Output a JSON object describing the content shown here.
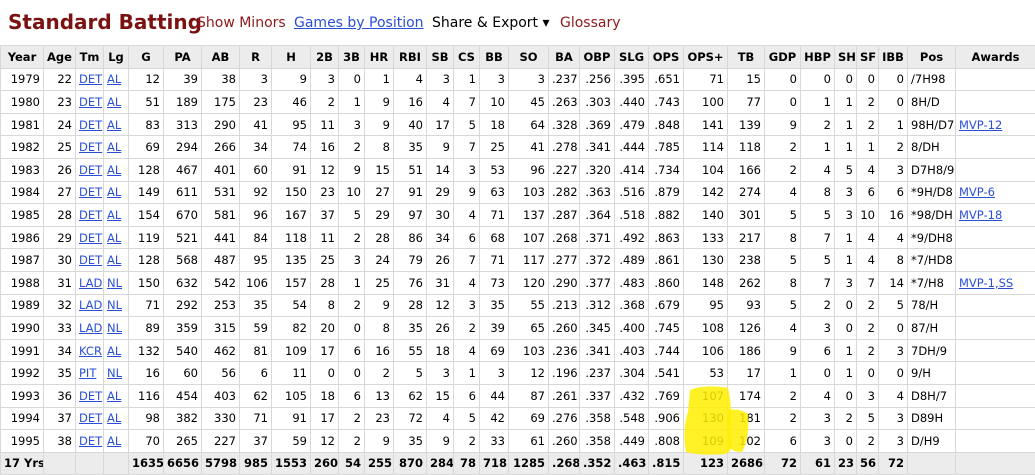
{
  "header": {
    "title": "Standard Batting",
    "show_minors": "Show Minors",
    "games_by_position": "Games by Position",
    "share_export": "Share & Export ▾",
    "glossary": "Glossary"
  },
  "table": {
    "columns": [
      "Year",
      "Age",
      "Tm",
      "Lg",
      "G",
      "PA",
      "AB",
      "R",
      "H",
      "2B",
      "3B",
      "HR",
      "RBI",
      "SB",
      "CS",
      "BB",
      "SO",
      "BA",
      "OBP",
      "SLG",
      "OPS",
      "OPS+",
      "TB",
      "GDP",
      "HBP",
      "SH",
      "SF",
      "IBB",
      "Pos",
      "Awards"
    ],
    "rows": [
      [
        "1979",
        "22",
        "DET",
        "AL",
        "12",
        "39",
        "38",
        "3",
        "9",
        "3",
        "0",
        "1",
        "4",
        "3",
        "1",
        "3",
        "3",
        ".237",
        ".256",
        ".395",
        ".651",
        "71",
        "15",
        "0",
        "0",
        "0",
        "0",
        "0",
        "/7H98",
        null
      ],
      [
        "1980",
        "23",
        "DET",
        "AL",
        "51",
        "189",
        "175",
        "23",
        "46",
        "2",
        "1",
        "9",
        "16",
        "4",
        "7",
        "10",
        "45",
        ".263",
        ".303",
        ".440",
        ".743",
        "100",
        "77",
        "0",
        "1",
        "1",
        "2",
        "0",
        "8H/D",
        null
      ],
      [
        "1981",
        "24",
        "DET",
        "AL",
        "83",
        "313",
        "290",
        "41",
        "95",
        "11",
        "3",
        "9",
        "40",
        "17",
        "5",
        "18",
        "64",
        ".328",
        ".369",
        ".479",
        ".848",
        "141",
        "139",
        "9",
        "2",
        "1",
        "2",
        "1",
        "98H/D7",
        "MVP-12"
      ],
      [
        "1982",
        "25",
        "DET",
        "AL",
        "69",
        "294",
        "266",
        "34",
        "74",
        "16",
        "2",
        "8",
        "35",
        "9",
        "7",
        "25",
        "41",
        ".278",
        ".341",
        ".444",
        ".785",
        "114",
        "118",
        "2",
        "1",
        "1",
        "1",
        "2",
        "8/DH",
        null
      ],
      [
        "1983",
        "26",
        "DET",
        "AL",
        "128",
        "467",
        "401",
        "60",
        "91",
        "12",
        "9",
        "15",
        "51",
        "14",
        "3",
        "53",
        "96",
        ".227",
        ".320",
        ".414",
        ".734",
        "104",
        "166",
        "2",
        "4",
        "5",
        "4",
        "3",
        "D7H8/9",
        null
      ],
      [
        "1984",
        "27",
        "DET",
        "AL",
        "149",
        "611",
        "531",
        "92",
        "150",
        "23",
        "10",
        "27",
        "91",
        "29",
        "9",
        "63",
        "103",
        ".282",
        ".363",
        ".516",
        ".879",
        "142",
        "274",
        "4",
        "8",
        "3",
        "6",
        "6",
        "*9H/D8",
        "MVP-6"
      ],
      [
        "1985",
        "28",
        "DET",
        "AL",
        "154",
        "670",
        "581",
        "96",
        "167",
        "37",
        "5",
        "29",
        "97",
        "30",
        "4",
        "71",
        "137",
        ".287",
        ".364",
        ".518",
        ".882",
        "140",
        "301",
        "5",
        "5",
        "3",
        "10",
        "16",
        "*98/DH",
        "MVP-18"
      ],
      [
        "1986",
        "29",
        "DET",
        "AL",
        "119",
        "521",
        "441",
        "84",
        "118",
        "11",
        "2",
        "28",
        "86",
        "34",
        "6",
        "68",
        "107",
        ".268",
        ".371",
        ".492",
        ".863",
        "133",
        "217",
        "8",
        "7",
        "1",
        "4",
        "4",
        "*9/DH8",
        null
      ],
      [
        "1987",
        "30",
        "DET",
        "AL",
        "128",
        "568",
        "487",
        "95",
        "135",
        "25",
        "3",
        "24",
        "79",
        "26",
        "7",
        "71",
        "117",
        ".277",
        ".372",
        ".489",
        ".861",
        "130",
        "238",
        "5",
        "5",
        "1",
        "4",
        "8",
        "*7/HD8",
        null
      ],
      [
        "1988",
        "31",
        "LAD",
        "NL",
        "150",
        "632",
        "542",
        "106",
        "157",
        "28",
        "1",
        "25",
        "76",
        "31",
        "4",
        "73",
        "120",
        ".290",
        ".377",
        ".483",
        ".860",
        "148",
        "262",
        "8",
        "7",
        "3",
        "7",
        "14",
        "*7/H8",
        "MVP-1,SS"
      ],
      [
        "1989",
        "32",
        "LAD",
        "NL",
        "71",
        "292",
        "253",
        "35",
        "54",
        "8",
        "2",
        "9",
        "28",
        "12",
        "3",
        "35",
        "55",
        ".213",
        ".312",
        ".368",
        ".679",
        "95",
        "93",
        "5",
        "2",
        "0",
        "2",
        "5",
        "78/H",
        null
      ],
      [
        "1990",
        "33",
        "LAD",
        "NL",
        "89",
        "359",
        "315",
        "59",
        "82",
        "20",
        "0",
        "8",
        "35",
        "26",
        "2",
        "39",
        "65",
        ".260",
        ".345",
        ".400",
        ".745",
        "108",
        "126",
        "4",
        "3",
        "0",
        "2",
        "0",
        "87/H",
        null
      ],
      [
        "1991",
        "34",
        "KCR",
        "AL",
        "132",
        "540",
        "462",
        "81",
        "109",
        "17",
        "6",
        "16",
        "55",
        "18",
        "4",
        "69",
        "103",
        ".236",
        ".341",
        ".403",
        ".744",
        "106",
        "186",
        "9",
        "6",
        "1",
        "2",
        "3",
        "7DH/9",
        null
      ],
      [
        "1992",
        "35",
        "PIT",
        "NL",
        "16",
        "60",
        "56",
        "6",
        "11",
        "0",
        "0",
        "2",
        "5",
        "3",
        "1",
        "3",
        "12",
        ".196",
        ".237",
        ".304",
        ".541",
        "53",
        "17",
        "1",
        "0",
        "1",
        "0",
        "0",
        "9/H",
        null
      ],
      [
        "1993",
        "36",
        "DET",
        "AL",
        "116",
        "454",
        "403",
        "62",
        "105",
        "18",
        "6",
        "13",
        "62",
        "15",
        "6",
        "44",
        "87",
        ".261",
        ".337",
        ".432",
        ".769",
        "107",
        "174",
        "2",
        "4",
        "0",
        "3",
        "4",
        "D8H/7",
        null
      ],
      [
        "1994",
        "37",
        "DET",
        "AL",
        "98",
        "382",
        "330",
        "71",
        "91",
        "17",
        "2",
        "23",
        "72",
        "4",
        "5",
        "42",
        "69",
        ".276",
        ".358",
        ".548",
        ".906",
        "130",
        "181",
        "2",
        "3",
        "2",
        "5",
        "3",
        "D89H",
        null
      ],
      [
        "1995",
        "38",
        "DET",
        "AL",
        "70",
        "265",
        "227",
        "37",
        "59",
        "12",
        "2",
        "9",
        "35",
        "9",
        "2",
        "33",
        "61",
        ".260",
        ".358",
        ".449",
        ".808",
        "109",
        "102",
        "6",
        "3",
        "0",
        "2",
        "3",
        "D/H9",
        null
      ]
    ],
    "total": [
      "17 Yrs",
      null,
      null,
      null,
      "1635",
      "6656",
      "5798",
      "985",
      "1553",
      "260",
      "54",
      "255",
      "870",
      "284",
      "78",
      "718",
      "1285",
      ".268",
      ".352",
      ".463",
      ".815",
      "123",
      "2686",
      "72",
      "61",
      "23",
      "56",
      "72",
      null,
      null
    ]
  }
}
